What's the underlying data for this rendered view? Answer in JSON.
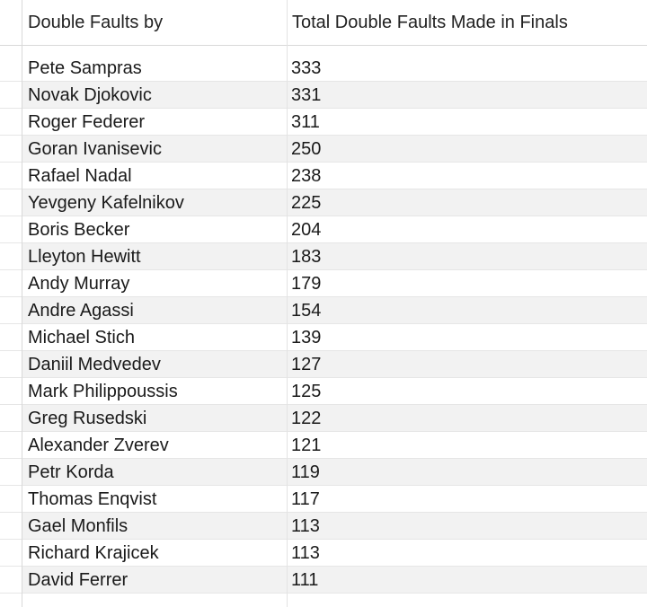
{
  "chart_data": {
    "type": "table",
    "columns": [
      "Double Faults by",
      "Total Double Faults Made in Finals"
    ],
    "rows": [
      {
        "player": "Pete Sampras",
        "value": 333
      },
      {
        "player": "Novak Djokovic",
        "value": 331
      },
      {
        "player": "Roger Federer",
        "value": 311
      },
      {
        "player": "Goran Ivanisevic",
        "value": 250
      },
      {
        "player": "Rafael Nadal",
        "value": 238
      },
      {
        "player": "Yevgeny Kafelnikov",
        "value": 225
      },
      {
        "player": "Boris Becker",
        "value": 204
      },
      {
        "player": "Lleyton Hewitt",
        "value": 183
      },
      {
        "player": "Andy Murray",
        "value": 179
      },
      {
        "player": "Andre Agassi",
        "value": 154
      },
      {
        "player": "Michael Stich",
        "value": 139
      },
      {
        "player": "Daniil Medvedev",
        "value": 127
      },
      {
        "player": "Mark Philippoussis",
        "value": 125
      },
      {
        "player": "Greg Rusedski",
        "value": 122
      },
      {
        "player": "Alexander Zverev",
        "value": 121
      },
      {
        "player": "Petr Korda",
        "value": 119
      },
      {
        "player": "Thomas Enqvist",
        "value": 117
      },
      {
        "player": "Gael Monfils",
        "value": 113
      },
      {
        "player": "Richard Krajicek",
        "value": 113
      },
      {
        "player": "David Ferrer",
        "value": 111
      }
    ]
  },
  "colors": {
    "row_alt": "#f2f2f2",
    "grid": "#e6e6e6",
    "text": "#1a1a1a"
  }
}
